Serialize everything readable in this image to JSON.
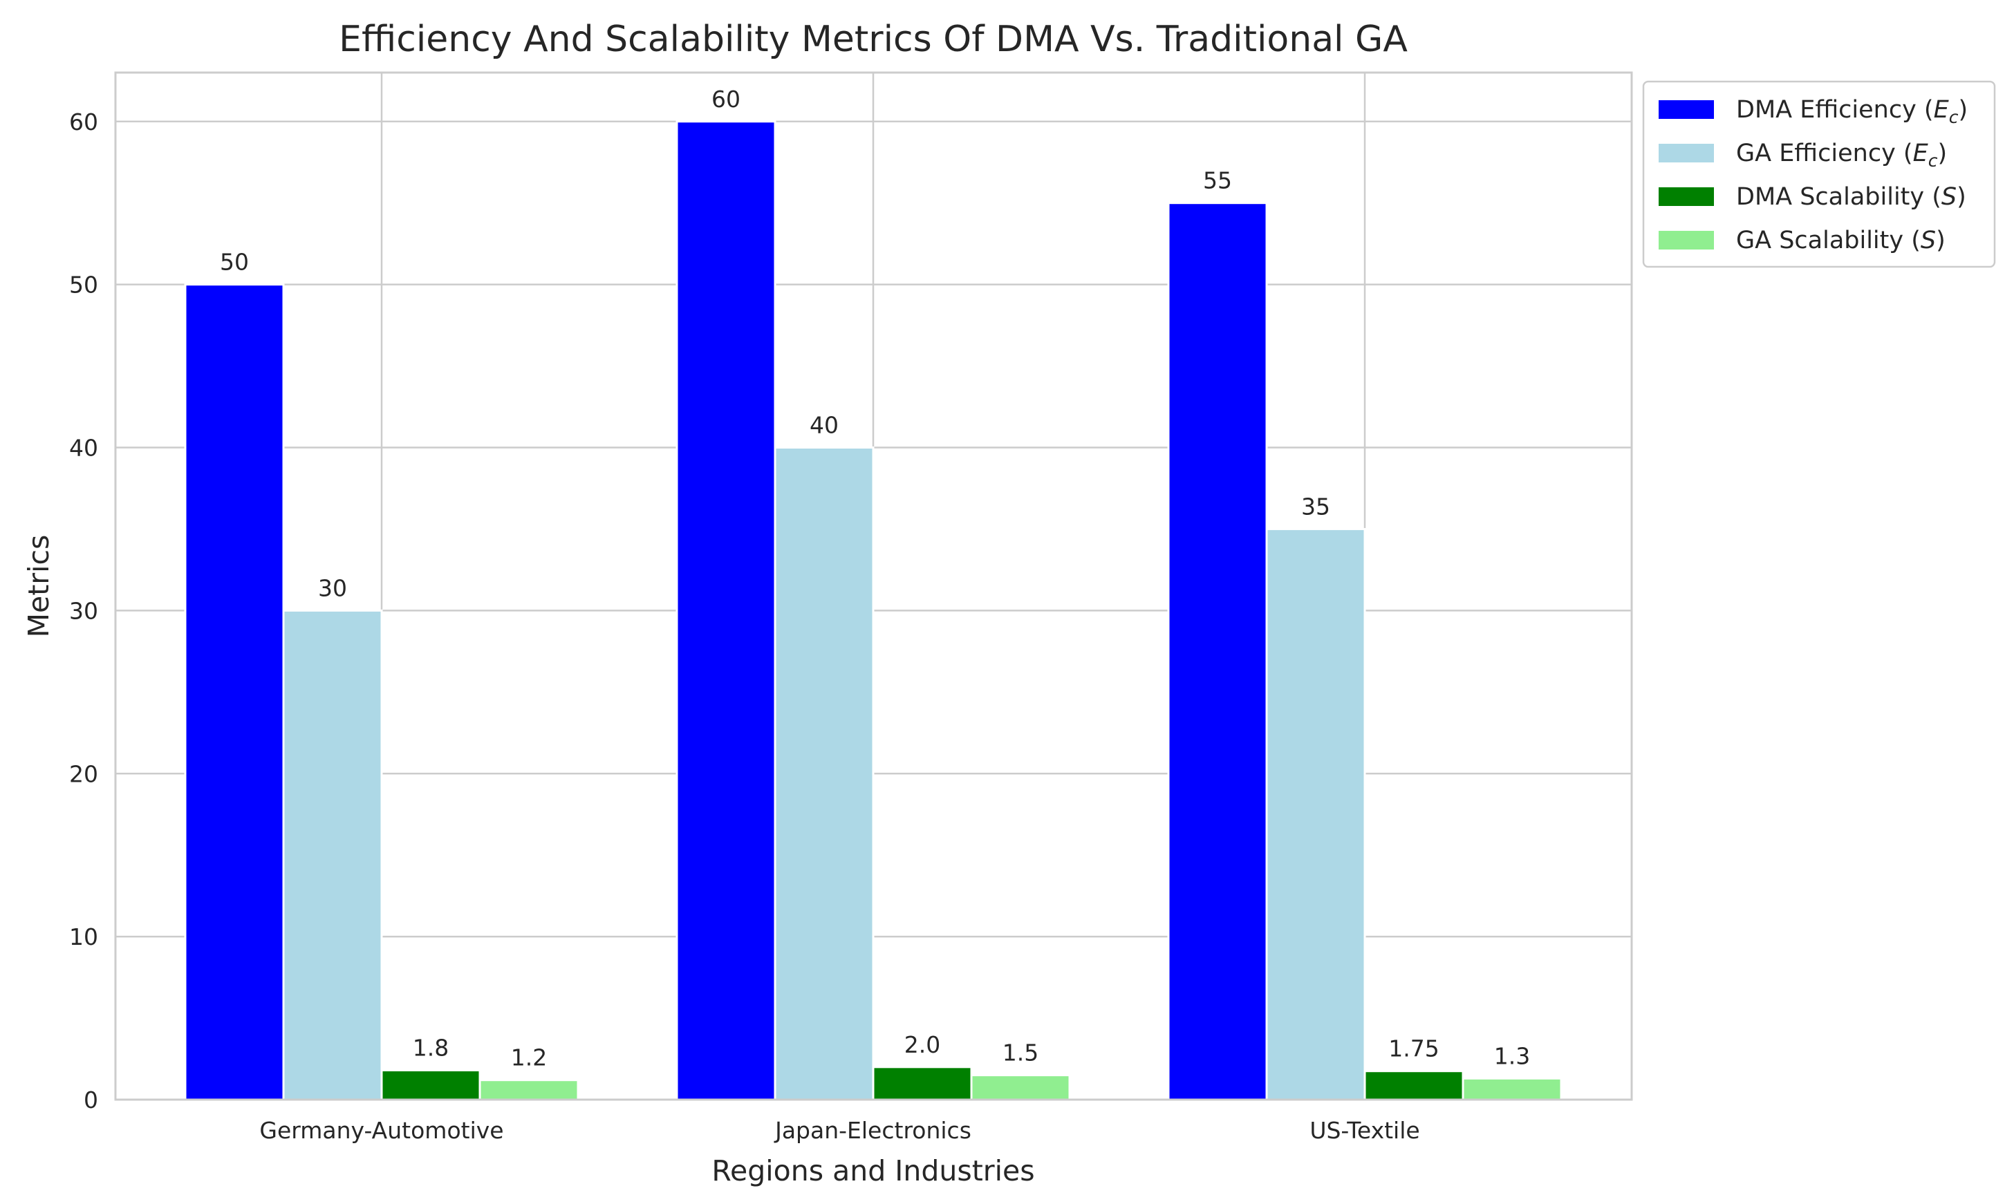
{
  "chart_data": {
    "type": "bar",
    "title": "Efficiency And Scalability Metrics Of DMA Vs. Traditional GA",
    "xlabel": "Regions and Industries",
    "ylabel": "Metrics",
    "categories": [
      "Germany-Automotive",
      "Japan-Electronics",
      "US-Textile"
    ],
    "ylim": [
      0,
      63
    ],
    "yticks": [
      0,
      10,
      20,
      30,
      40,
      50,
      60
    ],
    "grid": true,
    "legend_position": "outside-top-right",
    "series": [
      {
        "name": "DMA Efficiency (E_c)",
        "legend_prefix": "DMA Efficiency (",
        "legend_math": "E",
        "legend_sub": "c",
        "legend_suffix": ")",
        "color": "#0000ff",
        "values": [
          50,
          60,
          55
        ],
        "labels": [
          "50",
          "60",
          "55"
        ]
      },
      {
        "name": "GA Efficiency (E_c)",
        "legend_prefix": "GA Efficiency (",
        "legend_math": "E",
        "legend_sub": "c",
        "legend_suffix": ")",
        "color": "#add8e6",
        "values": [
          30,
          40,
          35
        ],
        "labels": [
          "30",
          "40",
          "35"
        ]
      },
      {
        "name": "DMA Scalability (S)",
        "legend_prefix": "DMA Scalability (",
        "legend_math": "S",
        "legend_sub": "",
        "legend_suffix": ")",
        "color": "#008000",
        "values": [
          1.8,
          2.0,
          1.75
        ],
        "labels": [
          "1.8",
          "2.0",
          "1.75"
        ]
      },
      {
        "name": "GA Scalability (S)",
        "legend_prefix": "GA Scalability (",
        "legend_math": "S",
        "legend_sub": "",
        "legend_suffix": ")",
        "color": "#90ee90",
        "values": [
          1.2,
          1.5,
          1.3
        ],
        "labels": [
          "1.2",
          "1.5",
          "1.3"
        ]
      }
    ]
  }
}
